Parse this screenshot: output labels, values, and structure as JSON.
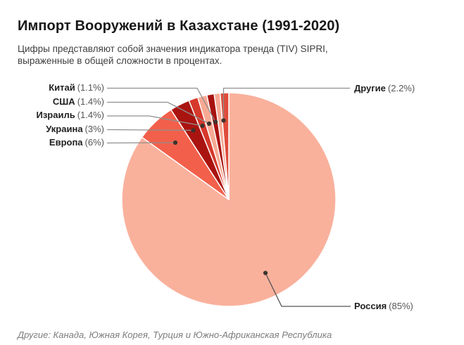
{
  "header": {
    "title": "Импорт Вооружений в Казахстане (1991-2020)",
    "subtitle": "Цифры представляют собой значения индикатора тренда (TIV) SIPRI, выраженные в общей сложности в процентах."
  },
  "footnote": "Другие: Канада, Южная Корея, Турция и Южно-Африканская Республика",
  "chart_data": {
    "type": "pie",
    "title": "Импорт Вооружений в Казахстане (1991-2020)",
    "unit": "%",
    "legend_position": "callout-labels",
    "slices": [
      {
        "name": "Россия",
        "value": 85,
        "value_label": "(85%)",
        "color": "#f9b19c"
      },
      {
        "name": "Европа",
        "value": 6,
        "value_label": "(6%)",
        "color": "#f2604b"
      },
      {
        "name": "Украина",
        "value": 3,
        "value_label": "(3%)",
        "color": "#aa1410"
      },
      {
        "name": "Израиль",
        "value": 1.4,
        "value_label": "(1.4%)",
        "color": "#d6392c"
      },
      {
        "name": "США",
        "value": 1.4,
        "value_label": "(1.4%)",
        "color": "#f7aa94"
      },
      {
        "name": "Китай",
        "value": 1.1,
        "value_label": "(1.1%)",
        "color": "#a8120f"
      },
      {
        "name": "Другие",
        "value": 2.2,
        "value_label": "(2.2%)",
        "color": "#df4b3a"
      }
    ],
    "display_segments": [
      {
        "label": "Россия",
        "value": 85,
        "color": "#f9b19c"
      },
      {
        "label": "Европа",
        "value": 6,
        "color": "#f2604b"
      },
      {
        "label": "Украина",
        "value": 3,
        "color": "#aa1410"
      },
      {
        "label": "Израиль",
        "value": 1.4,
        "color": "#d6392c"
      },
      {
        "label": "США",
        "value": 1.4,
        "color": "#f7aa94"
      },
      {
        "label": "Китай",
        "value": 1.1,
        "color": "#a8120f"
      },
      {
        "label": "Другие",
        "value": 0.9,
        "color": "#f7aa94"
      },
      {
        "label": "Другие",
        "value": 1.3,
        "color": "#df4b3a"
      }
    ],
    "style": {
      "slice_stroke": "#ffffff",
      "callout_line": "#8f8f8f",
      "callout_line_dark": "#545454",
      "callout_dot": "#3d342e"
    }
  }
}
